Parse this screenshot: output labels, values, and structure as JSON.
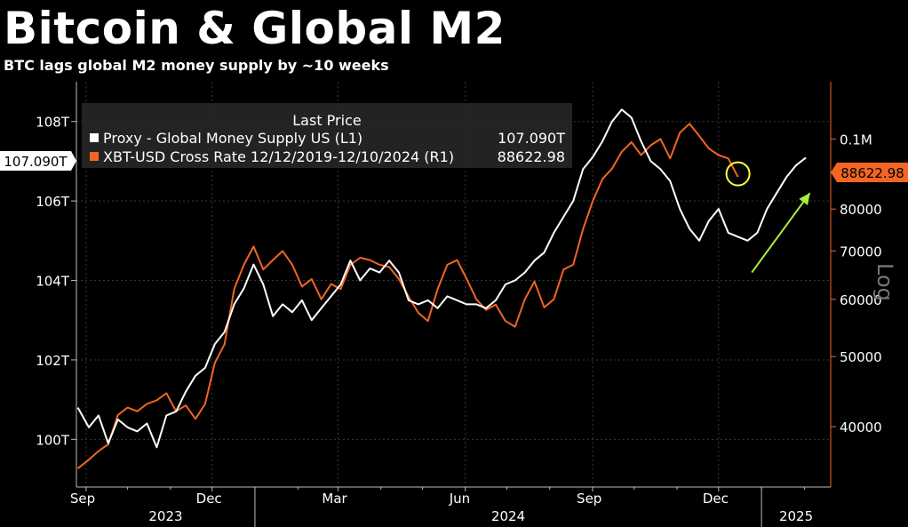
{
  "title": "Bitcoin & Global M2",
  "subtitle": "BTC lags global M2 money supply by ~10 weeks",
  "legend": {
    "header": "Last Price",
    "items": [
      {
        "label": "Proxy - Global Money Supply US  (L1)",
        "value": "107.090T"
      },
      {
        "label": "XBT-USD Cross Rate 12/12/2019-12/10/2024   (R1)",
        "value": "88622.98"
      }
    ]
  },
  "axis_side_label": "Log",
  "colors": {
    "m2": "#ffffff",
    "btc": "#f26522",
    "background": "#000000",
    "right_axis": "#f26522",
    "highlight_circle": "#ffff33",
    "arrow": "#aaee44"
  },
  "chart_data": {
    "type": "line",
    "x_months": [
      "Sep",
      "Dec",
      "Mar",
      "Jun",
      "Sep",
      "Dec"
    ],
    "x_years": [
      "2023",
      "2024",
      "2025"
    ],
    "x_range": [
      "2023-08-25",
      "2025-02-20"
    ],
    "left_axis": {
      "ticks": [
        "100T",
        "102T",
        "104T",
        "106T",
        "108T"
      ],
      "range": [
        98.8,
        109.0
      ],
      "unit": "T"
    },
    "right_axis": {
      "scale": "log",
      "ticks": [
        "40000",
        "50000",
        "60000",
        "70000",
        "80000",
        "0.1M"
      ],
      "range": [
        33000,
        120000
      ]
    },
    "last_value_tags": {
      "left": "107.090T",
      "right": "88622.98"
    },
    "series": [
      {
        "name": "Proxy - Global Money Supply US",
        "axis": "left",
        "points": [
          [
            "2023-08-26",
            100.8
          ],
          [
            "2023-09-03",
            100.3
          ],
          [
            "2023-09-10",
            100.6
          ],
          [
            "2023-09-17",
            99.9
          ],
          [
            "2023-09-24",
            100.5
          ],
          [
            "2023-10-01",
            100.3
          ],
          [
            "2023-10-08",
            100.2
          ],
          [
            "2023-10-15",
            100.4
          ],
          [
            "2023-10-22",
            99.8
          ],
          [
            "2023-10-29",
            100.6
          ],
          [
            "2023-11-05",
            100.7
          ],
          [
            "2023-11-12",
            101.2
          ],
          [
            "2023-11-19",
            101.6
          ],
          [
            "2023-11-26",
            101.8
          ],
          [
            "2023-12-03",
            102.4
          ],
          [
            "2023-12-10",
            102.7
          ],
          [
            "2023-12-17",
            103.4
          ],
          [
            "2023-12-24",
            103.8
          ],
          [
            "2023-12-31",
            104.4
          ],
          [
            "2024-01-07",
            103.9
          ],
          [
            "2024-01-14",
            103.1
          ],
          [
            "2024-01-21",
            103.4
          ],
          [
            "2024-01-28",
            103.2
          ],
          [
            "2024-02-04",
            103.5
          ],
          [
            "2024-02-11",
            103.0
          ],
          [
            "2024-02-18",
            103.3
          ],
          [
            "2024-02-25",
            103.6
          ],
          [
            "2024-03-03",
            103.9
          ],
          [
            "2024-03-10",
            104.5
          ],
          [
            "2024-03-17",
            104.0
          ],
          [
            "2024-03-24",
            104.3
          ],
          [
            "2024-03-31",
            104.2
          ],
          [
            "2024-04-07",
            104.5
          ],
          [
            "2024-04-14",
            104.2
          ],
          [
            "2024-04-21",
            103.5
          ],
          [
            "2024-04-28",
            103.4
          ],
          [
            "2024-05-05",
            103.5
          ],
          [
            "2024-05-12",
            103.3
          ],
          [
            "2024-05-19",
            103.6
          ],
          [
            "2024-05-26",
            103.5
          ],
          [
            "2024-06-02",
            103.4
          ],
          [
            "2024-06-09",
            103.4
          ],
          [
            "2024-06-16",
            103.3
          ],
          [
            "2024-06-23",
            103.5
          ],
          [
            "2024-06-30",
            103.9
          ],
          [
            "2024-07-07",
            104.0
          ],
          [
            "2024-07-14",
            104.2
          ],
          [
            "2024-07-21",
            104.5
          ],
          [
            "2024-07-28",
            104.7
          ],
          [
            "2024-08-04",
            105.2
          ],
          [
            "2024-08-11",
            105.6
          ],
          [
            "2024-08-18",
            106.0
          ],
          [
            "2024-08-25",
            106.8
          ],
          [
            "2024-09-01",
            107.1
          ],
          [
            "2024-09-08",
            107.5
          ],
          [
            "2024-09-15",
            108.0
          ],
          [
            "2024-09-22",
            108.3
          ],
          [
            "2024-09-29",
            108.1
          ],
          [
            "2024-10-06",
            107.5
          ],
          [
            "2024-10-13",
            107.0
          ],
          [
            "2024-10-20",
            106.8
          ],
          [
            "2024-10-27",
            106.5
          ],
          [
            "2024-11-03",
            105.8
          ],
          [
            "2024-11-10",
            105.3
          ],
          [
            "2024-11-17",
            105.0
          ],
          [
            "2024-11-24",
            105.5
          ],
          [
            "2024-12-01",
            105.8
          ],
          [
            "2024-12-08",
            105.2
          ],
          [
            "2024-12-15",
            105.1
          ],
          [
            "2024-12-22",
            105.0
          ],
          [
            "2024-12-29",
            105.2
          ],
          [
            "2025-01-05",
            105.8
          ],
          [
            "2025-01-12",
            106.2
          ],
          [
            "2025-01-19",
            106.6
          ],
          [
            "2025-01-26",
            106.9
          ],
          [
            "2025-02-02",
            107.09
          ]
        ]
      },
      {
        "name": "XBT-USD Cross Rate",
        "axis": "right",
        "points": [
          [
            "2023-08-26",
            35000
          ],
          [
            "2023-09-03",
            36000
          ],
          [
            "2023-09-10",
            37000
          ],
          [
            "2023-09-17",
            37800
          ],
          [
            "2023-09-24",
            41500
          ],
          [
            "2023-10-01",
            42500
          ],
          [
            "2023-10-08",
            42000
          ],
          [
            "2023-10-15",
            43000
          ],
          [
            "2023-10-22",
            43500
          ],
          [
            "2023-10-29",
            44500
          ],
          [
            "2023-11-05",
            42000
          ],
          [
            "2023-11-12",
            42800
          ],
          [
            "2023-11-19",
            41000
          ],
          [
            "2023-11-26",
            43000
          ],
          [
            "2023-12-03",
            49000
          ],
          [
            "2023-12-10",
            52000
          ],
          [
            "2023-12-17",
            62000
          ],
          [
            "2023-12-24",
            67000
          ],
          [
            "2023-12-31",
            71000
          ],
          [
            "2024-01-07",
            66000
          ],
          [
            "2024-01-14",
            68000
          ],
          [
            "2024-01-21",
            70000
          ],
          [
            "2024-01-28",
            67000
          ],
          [
            "2024-02-04",
            62500
          ],
          [
            "2024-02-11",
            64000
          ],
          [
            "2024-02-18",
            60000
          ],
          [
            "2024-02-25",
            63000
          ],
          [
            "2024-03-03",
            62000
          ],
          [
            "2024-03-10",
            67000
          ],
          [
            "2024-03-17",
            68500
          ],
          [
            "2024-03-24",
            68000
          ],
          [
            "2024-03-31",
            67000
          ],
          [
            "2024-04-07",
            66500
          ],
          [
            "2024-04-14",
            64000
          ],
          [
            "2024-04-21",
            60500
          ],
          [
            "2024-04-28",
            57500
          ],
          [
            "2024-05-05",
            56000
          ],
          [
            "2024-05-12",
            62000
          ],
          [
            "2024-05-19",
            67000
          ],
          [
            "2024-05-26",
            68000
          ],
          [
            "2024-06-02",
            64000
          ],
          [
            "2024-06-09",
            60000
          ],
          [
            "2024-06-16",
            58000
          ],
          [
            "2024-06-23",
            59000
          ],
          [
            "2024-06-30",
            56000
          ],
          [
            "2024-07-07",
            55000
          ],
          [
            "2024-07-14",
            60000
          ],
          [
            "2024-07-21",
            63500
          ],
          [
            "2024-07-28",
            58500
          ],
          [
            "2024-08-04",
            60000
          ],
          [
            "2024-08-11",
            66000
          ],
          [
            "2024-08-18",
            67000
          ],
          [
            "2024-08-25",
            75000
          ],
          [
            "2024-09-01",
            82000
          ],
          [
            "2024-09-08",
            88000
          ],
          [
            "2024-09-15",
            91000
          ],
          [
            "2024-09-22",
            96000
          ],
          [
            "2024-09-29",
            99000
          ],
          [
            "2024-10-06",
            95000
          ],
          [
            "2024-10-13",
            98000
          ],
          [
            "2024-10-20",
            100000
          ],
          [
            "2024-10-27",
            94000
          ],
          [
            "2024-11-03",
            102000
          ],
          [
            "2024-11-10",
            105000
          ],
          [
            "2024-11-17",
            101000
          ],
          [
            "2024-11-24",
            97000
          ],
          [
            "2024-12-01",
            95000
          ],
          [
            "2024-12-08",
            94000
          ],
          [
            "2024-12-15",
            88622.98
          ]
        ]
      }
    ],
    "annotations": [
      {
        "type": "circle",
        "at": [
          "2024-12-15",
          89500
        ]
      },
      {
        "type": "arrow",
        "from": [
          "2024-12-25",
          104.2
        ],
        "to": [
          "2025-02-05",
          106.2
        ]
      }
    ]
  }
}
